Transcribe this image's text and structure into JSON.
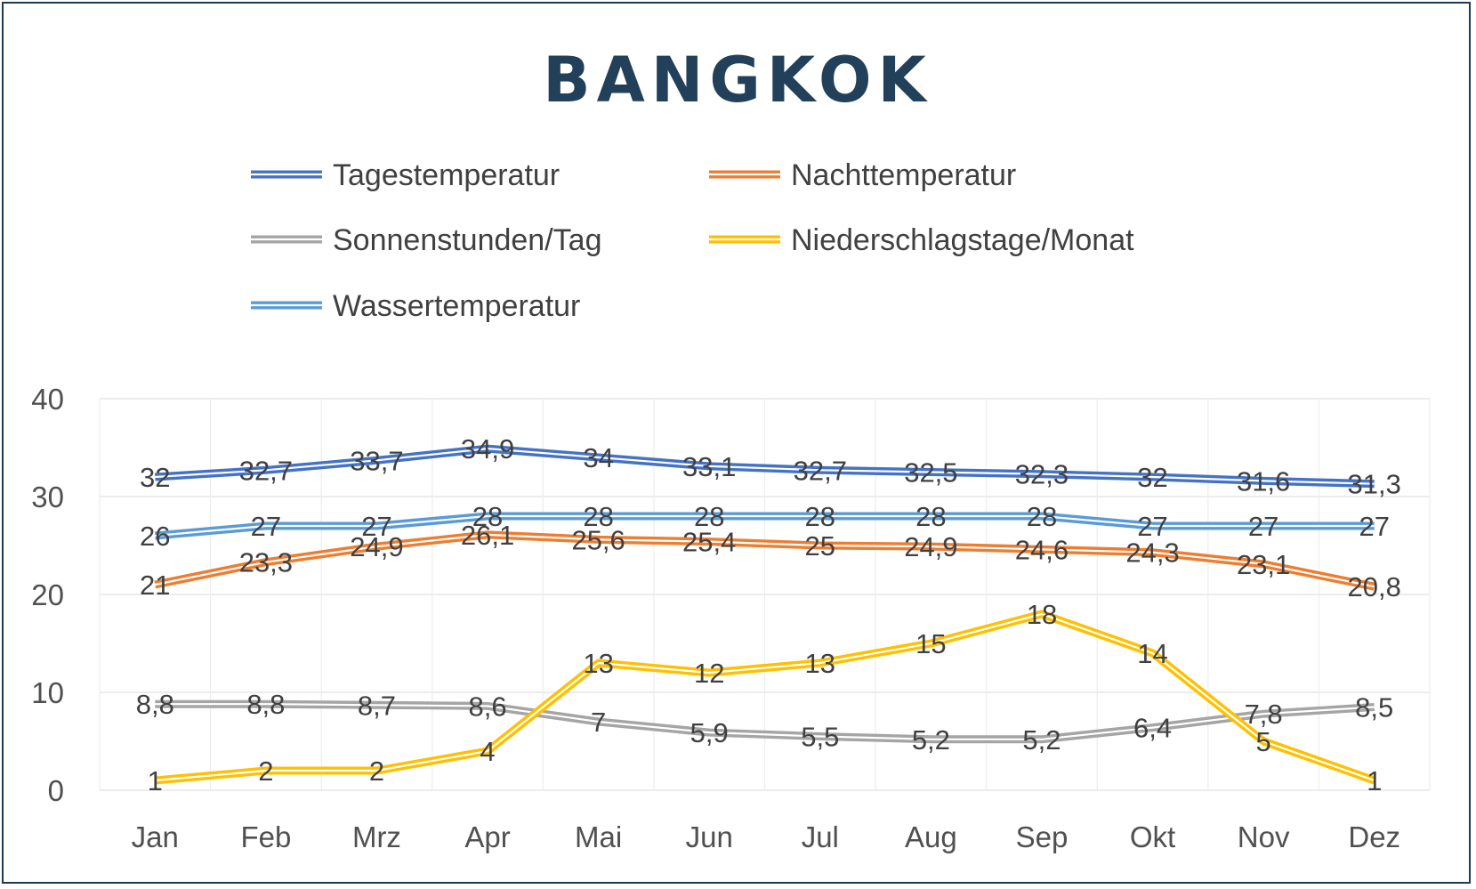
{
  "chart_data": {
    "type": "line",
    "title": "BANGKOK",
    "categories": [
      "Jan",
      "Feb",
      "Mrz",
      "Apr",
      "Mai",
      "Jun",
      "Jul",
      "Aug",
      "Sep",
      "Okt",
      "Nov",
      "Dez"
    ],
    "ylim": [
      0,
      40
    ],
    "yticks": [
      0,
      10,
      20,
      30,
      40
    ],
    "grid": true,
    "legend_position": "top",
    "series": [
      {
        "name": "Tagestemperatur",
        "color": "#4472c4",
        "values": [
          32,
          32.7,
          33.7,
          34.9,
          34,
          33.1,
          32.7,
          32.5,
          32.3,
          32,
          31.6,
          31.3
        ],
        "labels": [
          "32",
          "32,7",
          "33,7",
          "34,9",
          "34",
          "33,1",
          "32,7",
          "32,5",
          "32,3",
          "32",
          "31,6",
          "31,3"
        ]
      },
      {
        "name": "Nachttemperatur",
        "color": "#ed7d31",
        "values": [
          21,
          23.3,
          24.9,
          26.1,
          25.6,
          25.4,
          25,
          24.9,
          24.6,
          24.3,
          23.1,
          20.8
        ],
        "labels": [
          "21",
          "23,3",
          "24,9",
          "26,1",
          "25,6",
          "25,4",
          "25",
          "24,9",
          "24,6",
          "24,3",
          "23,1",
          "20,8"
        ]
      },
      {
        "name": "Sonnenstunden/Tag",
        "color": "#a5a5a5",
        "values": [
          8.8,
          8.8,
          8.7,
          8.6,
          7,
          5.9,
          5.5,
          5.2,
          5.2,
          6.4,
          7.8,
          8.5
        ],
        "labels": [
          "8,8",
          "8,8",
          "8,7",
          "8,6",
          "7",
          "5,9",
          "5,5",
          "5,2",
          "5,2",
          "6,4",
          "7,8",
          "8,5"
        ]
      },
      {
        "name": "Niederschlagstage/Monat",
        "color": "#ffc000",
        "values": [
          1,
          2,
          2,
          4,
          13,
          12,
          13,
          15,
          18,
          14,
          5,
          1
        ],
        "labels": [
          "1",
          "2",
          "2",
          "4",
          "13",
          "12",
          "13",
          "15",
          "18",
          "14",
          "5",
          "1"
        ]
      },
      {
        "name": "Wassertemperatur",
        "color": "#5b9bd5",
        "values": [
          26,
          27,
          27,
          28,
          28,
          28,
          28,
          28,
          28,
          27,
          27,
          27
        ],
        "labels": [
          "26",
          "27",
          "27",
          "28",
          "28",
          "28",
          "28",
          "28",
          "28",
          "27",
          "27",
          "27"
        ]
      }
    ]
  }
}
